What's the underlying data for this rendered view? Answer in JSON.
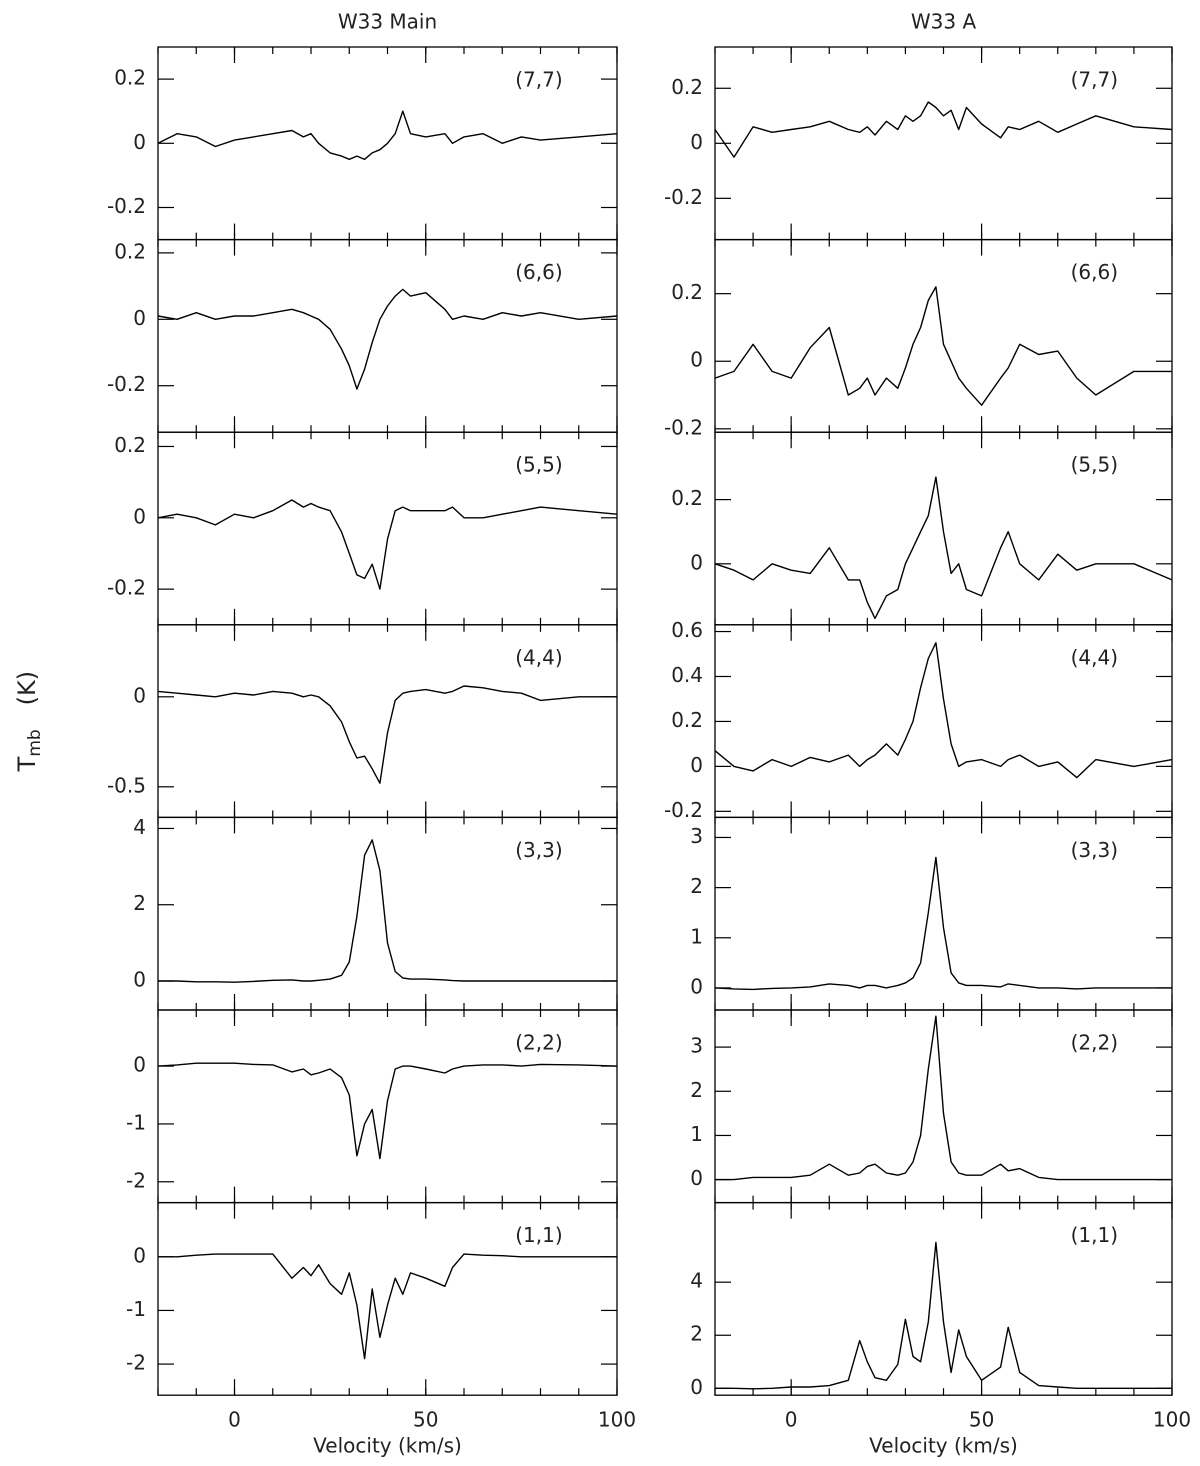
{
  "chart_data": [
    {
      "type": "line",
      "title": "W33 Main",
      "annotation": "(7,7)",
      "color": "#000000",
      "xlim": [
        -20,
        100
      ],
      "xticks": [
        0,
        50,
        100
      ],
      "ylim": [
        -0.3,
        0.3
      ],
      "yticks": [
        -0.2,
        0,
        0.2
      ],
      "x": [
        -20,
        -15,
        -10,
        -5,
        0,
        5,
        10,
        15,
        18,
        20,
        22,
        25,
        28,
        30,
        32,
        34,
        36,
        38,
        40,
        42,
        44,
        46,
        50,
        55,
        57,
        60,
        65,
        70,
        75,
        80,
        90,
        100
      ],
      "values": [
        0,
        0.03,
        0.02,
        -0.01,
        0.01,
        0.02,
        0.03,
        0.04,
        0.02,
        0.03,
        0.0,
        -0.03,
        -0.04,
        -0.05,
        -0.04,
        -0.05,
        -0.03,
        -0.02,
        0.0,
        0.03,
        0.1,
        0.03,
        0.02,
        0.03,
        0.0,
        0.02,
        0.03,
        0.0,
        0.02,
        0.01,
        0.02,
        0.03
      ]
    },
    {
      "type": "line",
      "annotation": "(6,6)",
      "color": "#000000",
      "xlim": [
        -20,
        100
      ],
      "xticks": [
        0,
        50,
        100
      ],
      "ylim": [
        -0.34,
        0.24
      ],
      "yticks": [
        -0.2,
        0,
        0.2
      ],
      "x": [
        -20,
        -15,
        -10,
        -5,
        0,
        5,
        10,
        15,
        18,
        20,
        22,
        25,
        28,
        30,
        32,
        34,
        36,
        38,
        40,
        42,
        44,
        46,
        50,
        55,
        57,
        60,
        65,
        70,
        75,
        80,
        90,
        100
      ],
      "values": [
        0.01,
        0.0,
        0.02,
        0.0,
        0.01,
        0.01,
        0.02,
        0.03,
        0.02,
        0.01,
        0.0,
        -0.03,
        -0.09,
        -0.14,
        -0.21,
        -0.15,
        -0.07,
        0.0,
        0.04,
        0.07,
        0.09,
        0.07,
        0.08,
        0.03,
        0.0,
        0.01,
        0.0,
        0.02,
        0.01,
        0.02,
        0.0,
        0.01
      ]
    },
    {
      "type": "line",
      "annotation": "(5,5)",
      "color": "#000000",
      "xlim": [
        -20,
        100
      ],
      "xticks": [
        0,
        50,
        100
      ],
      "ylim": [
        -0.3,
        0.24
      ],
      "yticks": [
        -0.2,
        0,
        0.2
      ],
      "x": [
        -20,
        -15,
        -10,
        -5,
        0,
        5,
        10,
        15,
        18,
        20,
        22,
        25,
        28,
        30,
        32,
        34,
        36,
        38,
        40,
        42,
        44,
        46,
        50,
        55,
        57,
        60,
        65,
        70,
        75,
        80,
        90,
        100
      ],
      "values": [
        0.0,
        0.01,
        0.0,
        -0.02,
        0.01,
        0.0,
        0.02,
        0.05,
        0.03,
        0.04,
        0.03,
        0.02,
        -0.04,
        -0.1,
        -0.16,
        -0.17,
        -0.13,
        -0.2,
        -0.06,
        0.02,
        0.03,
        0.02,
        0.02,
        0.02,
        0.03,
        0.0,
        0.0,
        0.01,
        0.02,
        0.03,
        0.02,
        0.01
      ]
    },
    {
      "type": "line",
      "annotation": "(4,4)",
      "ylabel": {
        "symbol": "T",
        "subscript": "mb",
        "unit": "(K)"
      },
      "color": "#000000",
      "xlim": [
        -20,
        100
      ],
      "xticks": [
        0,
        50,
        100
      ],
      "ylim": [
        -0.67,
        0.4
      ],
      "yticks": [
        -0.5,
        0
      ],
      "x": [
        -20,
        -15,
        -10,
        -5,
        0,
        5,
        10,
        15,
        18,
        20,
        22,
        25,
        28,
        30,
        32,
        34,
        36,
        38,
        40,
        42,
        44,
        46,
        50,
        55,
        57,
        60,
        65,
        70,
        75,
        80,
        90,
        100
      ],
      "values": [
        0.03,
        0.02,
        0.01,
        0.0,
        0.02,
        0.01,
        0.03,
        0.02,
        0.0,
        0.01,
        0.0,
        -0.05,
        -0.14,
        -0.25,
        -0.34,
        -0.33,
        -0.4,
        -0.48,
        -0.2,
        -0.02,
        0.02,
        0.03,
        0.04,
        0.02,
        0.03,
        0.06,
        0.05,
        0.03,
        0.02,
        -0.02,
        0.0,
        0.0
      ]
    },
    {
      "type": "line",
      "annotation": "(3,3)",
      "color": "#000000",
      "xlim": [
        -20,
        100
      ],
      "xticks": [
        0,
        50,
        100
      ],
      "ylim": [
        -0.76,
        4.29
      ],
      "yticks": [
        0,
        2,
        4
      ],
      "x": [
        -20,
        -15,
        -10,
        -5,
        0,
        5,
        10,
        15,
        18,
        20,
        22,
        25,
        28,
        30,
        32,
        34,
        36,
        38,
        40,
        42,
        44,
        46,
        50,
        55,
        57,
        60,
        65,
        70,
        75,
        80,
        90,
        100
      ],
      "values": [
        0.0,
        0.0,
        -0.02,
        -0.02,
        -0.03,
        -0.01,
        0.02,
        0.03,
        0.0,
        0.0,
        0.02,
        0.05,
        0.15,
        0.5,
        1.7,
        3.3,
        3.7,
        2.9,
        1.0,
        0.25,
        0.08,
        0.05,
        0.05,
        0.03,
        0.01,
        0.0,
        0.0,
        0.0,
        0.0,
        0.0,
        0.0,
        0.0
      ]
    },
    {
      "type": "line",
      "annotation": "(2,2)",
      "color": "#000000",
      "xlim": [
        -20,
        100
      ],
      "xticks": [
        0,
        50,
        100
      ],
      "ylim": [
        -2.36,
        0.97
      ],
      "yticks": [
        -2,
        -1,
        0
      ],
      "x": [
        -20,
        -15,
        -10,
        -5,
        0,
        5,
        10,
        15,
        18,
        20,
        22,
        25,
        28,
        30,
        32,
        34,
        36,
        38,
        40,
        42,
        44,
        46,
        50,
        55,
        57,
        60,
        65,
        70,
        75,
        80,
        90,
        100
      ],
      "values": [
        0.0,
        0.02,
        0.05,
        0.05,
        0.05,
        0.03,
        0.02,
        -0.1,
        -0.05,
        -0.15,
        -0.12,
        -0.05,
        -0.2,
        -0.5,
        -1.55,
        -1.0,
        -0.75,
        -1.6,
        -0.6,
        -0.05,
        0.0,
        0.0,
        -0.05,
        -0.12,
        -0.05,
        0.0,
        0.02,
        0.02,
        0.0,
        0.03,
        0.02,
        0.0
      ]
    },
    {
      "type": "line",
      "annotation": "(1,1)",
      "xlabel": "Velocity (km/s)",
      "color": "#000000",
      "xlim": [
        -20,
        100
      ],
      "xticks": [
        0,
        50,
        100
      ],
      "ylim": [
        -2.58,
        1.01
      ],
      "yticks": [
        -2,
        -1,
        0
      ],
      "x": [
        -20,
        -15,
        -10,
        -5,
        0,
        5,
        10,
        15,
        18,
        20,
        22,
        25,
        28,
        30,
        32,
        34,
        36,
        38,
        40,
        42,
        44,
        46,
        50,
        55,
        57,
        60,
        65,
        70,
        75,
        80,
        90,
        100
      ],
      "values": [
        0.0,
        0.0,
        0.03,
        0.05,
        0.05,
        0.05,
        0.05,
        -0.4,
        -0.2,
        -0.35,
        -0.15,
        -0.5,
        -0.7,
        -0.3,
        -0.9,
        -1.9,
        -0.6,
        -1.5,
        -0.9,
        -0.4,
        -0.7,
        -0.3,
        -0.4,
        -0.55,
        -0.2,
        0.05,
        0.03,
        0.02,
        0.0,
        0.0,
        0.0,
        0.0
      ]
    },
    {
      "type": "line",
      "title": "W33 A",
      "annotation": "(7,7)",
      "color": "#000000",
      "xlim": [
        -20,
        100
      ],
      "xticks": [
        0,
        50,
        100
      ],
      "ylim": [
        -0.35,
        0.35
      ],
      "yticks": [
        -0.2,
        0,
        0.2
      ],
      "x": [
        -20,
        -15,
        -10,
        -5,
        0,
        5,
        10,
        15,
        18,
        20,
        22,
        25,
        28,
        30,
        32,
        34,
        36,
        38,
        40,
        42,
        44,
        46,
        50,
        55,
        57,
        60,
        65,
        70,
        75,
        80,
        90,
        100
      ],
      "values": [
        0.05,
        -0.05,
        0.06,
        0.04,
        0.05,
        0.06,
        0.08,
        0.05,
        0.04,
        0.06,
        0.03,
        0.08,
        0.05,
        0.1,
        0.08,
        0.1,
        0.15,
        0.13,
        0.1,
        0.12,
        0.05,
        0.13,
        0.07,
        0.02,
        0.06,
        0.05,
        0.08,
        0.04,
        0.07,
        0.1,
        0.06,
        0.05
      ]
    },
    {
      "type": "line",
      "annotation": "(6,6)",
      "color": "#000000",
      "xlim": [
        -20,
        100
      ],
      "xticks": [
        0,
        50,
        100
      ],
      "ylim": [
        -0.21,
        0.36
      ],
      "yticks": [
        -0.2,
        0,
        0.2
      ],
      "x": [
        -20,
        -15,
        -10,
        -5,
        0,
        5,
        10,
        15,
        18,
        20,
        22,
        25,
        28,
        30,
        32,
        34,
        36,
        38,
        40,
        42,
        44,
        46,
        50,
        55,
        57,
        60,
        65,
        70,
        75,
        80,
        90,
        100
      ],
      "values": [
        -0.05,
        -0.03,
        0.05,
        -0.03,
        -0.05,
        0.04,
        0.1,
        -0.1,
        -0.08,
        -0.05,
        -0.1,
        -0.05,
        -0.08,
        -0.02,
        0.05,
        0.1,
        0.18,
        0.22,
        0.05,
        0.0,
        -0.05,
        -0.08,
        -0.13,
        -0.05,
        -0.02,
        0.05,
        0.02,
        0.03,
        -0.05,
        -0.1,
        -0.03,
        -0.03
      ]
    },
    {
      "type": "line",
      "annotation": "(5,5)",
      "color": "#000000",
      "xlim": [
        -20,
        100
      ],
      "xticks": [
        0,
        50,
        100
      ],
      "ylim": [
        -0.19,
        0.41
      ],
      "yticks": [
        0,
        0.2
      ],
      "x": [
        -20,
        -15,
        -10,
        -5,
        0,
        5,
        10,
        15,
        18,
        20,
        22,
        25,
        28,
        30,
        32,
        34,
        36,
        38,
        40,
        42,
        44,
        46,
        50,
        55,
        57,
        60,
        65,
        70,
        75,
        80,
        90,
        100
      ],
      "values": [
        0.0,
        -0.02,
        -0.05,
        0.0,
        -0.02,
        -0.03,
        0.05,
        -0.05,
        -0.05,
        -0.12,
        -0.17,
        -0.1,
        -0.08,
        0.0,
        0.05,
        0.1,
        0.15,
        0.27,
        0.1,
        -0.03,
        0.0,
        -0.08,
        -0.1,
        0.05,
        0.1,
        0.0,
        -0.05,
        0.03,
        -0.02,
        0.0,
        0.0,
        -0.05
      ]
    },
    {
      "type": "line",
      "annotation": "(4,4)",
      "color": "#000000",
      "xlim": [
        -20,
        100
      ],
      "xticks": [
        0,
        50,
        100
      ],
      "ylim": [
        -0.227,
        0.63
      ],
      "yticks": [
        -0.2,
        0,
        0.2,
        0.4,
        0.6
      ],
      "x": [
        -20,
        -15,
        -10,
        -5,
        0,
        5,
        10,
        15,
        18,
        20,
        22,
        25,
        28,
        30,
        32,
        34,
        36,
        38,
        40,
        42,
        44,
        46,
        50,
        55,
        57,
        60,
        65,
        70,
        75,
        80,
        90,
        100
      ],
      "values": [
        0.07,
        0.0,
        -0.02,
        0.03,
        0.0,
        0.04,
        0.02,
        0.05,
        0.0,
        0.03,
        0.05,
        0.1,
        0.05,
        0.12,
        0.2,
        0.35,
        0.48,
        0.55,
        0.3,
        0.1,
        0.0,
        0.02,
        0.03,
        0.0,
        0.03,
        0.05,
        0.0,
        0.02,
        -0.05,
        0.03,
        0.0,
        0.03
      ]
    },
    {
      "type": "line",
      "annotation": "(3,3)",
      "color": "#000000",
      "xlim": [
        -20,
        100
      ],
      "xticks": [
        0,
        50,
        100
      ],
      "ylim": [
        -0.44,
        3.4
      ],
      "yticks": [
        0,
        1,
        2,
        3
      ],
      "x": [
        -20,
        -15,
        -10,
        -5,
        0,
        5,
        10,
        15,
        18,
        20,
        22,
        25,
        28,
        30,
        32,
        34,
        36,
        38,
        40,
        42,
        44,
        46,
        50,
        55,
        57,
        60,
        65,
        70,
        75,
        80,
        90,
        100
      ],
      "values": [
        0.0,
        -0.02,
        -0.03,
        -0.01,
        0.0,
        0.02,
        0.08,
        0.05,
        0.0,
        0.05,
        0.05,
        0.0,
        0.05,
        0.1,
        0.2,
        0.5,
        1.5,
        2.6,
        1.2,
        0.3,
        0.1,
        0.05,
        0.05,
        0.02,
        0.08,
        0.05,
        0.0,
        0.0,
        -0.02,
        0.0,
        0.0,
        0.0
      ]
    },
    {
      "type": "line",
      "annotation": "(2,2)",
      "color": "#000000",
      "xlim": [
        -20,
        100
      ],
      "xticks": [
        0,
        50,
        100
      ],
      "ylim": [
        -0.52,
        3.84
      ],
      "yticks": [
        0,
        1,
        2,
        3
      ],
      "x": [
        -20,
        -15,
        -10,
        -5,
        0,
        5,
        10,
        15,
        18,
        20,
        22,
        25,
        28,
        30,
        32,
        34,
        36,
        38,
        40,
        42,
        44,
        46,
        50,
        55,
        57,
        60,
        65,
        70,
        75,
        80,
        90,
        100
      ],
      "values": [
        0.0,
        0.0,
        0.05,
        0.05,
        0.05,
        0.1,
        0.35,
        0.1,
        0.15,
        0.3,
        0.35,
        0.15,
        0.1,
        0.15,
        0.4,
        1.0,
        2.5,
        3.7,
        1.5,
        0.4,
        0.15,
        0.1,
        0.1,
        0.35,
        0.2,
        0.25,
        0.05,
        0.0,
        0.0,
        0.0,
        0.0,
        0.0
      ]
    },
    {
      "type": "line",
      "annotation": "(1,1)",
      "xlabel": "Velocity (km/s)",
      "color": "#000000",
      "xlim": [
        -20,
        100
      ],
      "xticks": [
        0,
        50,
        100
      ],
      "ylim": [
        -0.26,
        7.0
      ],
      "yticks": [
        0,
        2,
        4
      ],
      "x": [
        -20,
        -15,
        -10,
        -5,
        0,
        5,
        10,
        15,
        18,
        20,
        22,
        25,
        28,
        30,
        32,
        34,
        36,
        38,
        40,
        42,
        44,
        46,
        50,
        55,
        57,
        60,
        65,
        70,
        75,
        80,
        90,
        100
      ],
      "values": [
        0.0,
        0.0,
        -0.02,
        0.0,
        0.05,
        0.05,
        0.1,
        0.3,
        1.8,
        1.0,
        0.4,
        0.3,
        0.9,
        2.6,
        1.2,
        1.0,
        2.5,
        5.5,
        2.5,
        0.6,
        2.2,
        1.2,
        0.3,
        0.8,
        2.3,
        0.6,
        0.1,
        0.05,
        0.0,
        0.0,
        0.0,
        0.0
      ]
    }
  ]
}
